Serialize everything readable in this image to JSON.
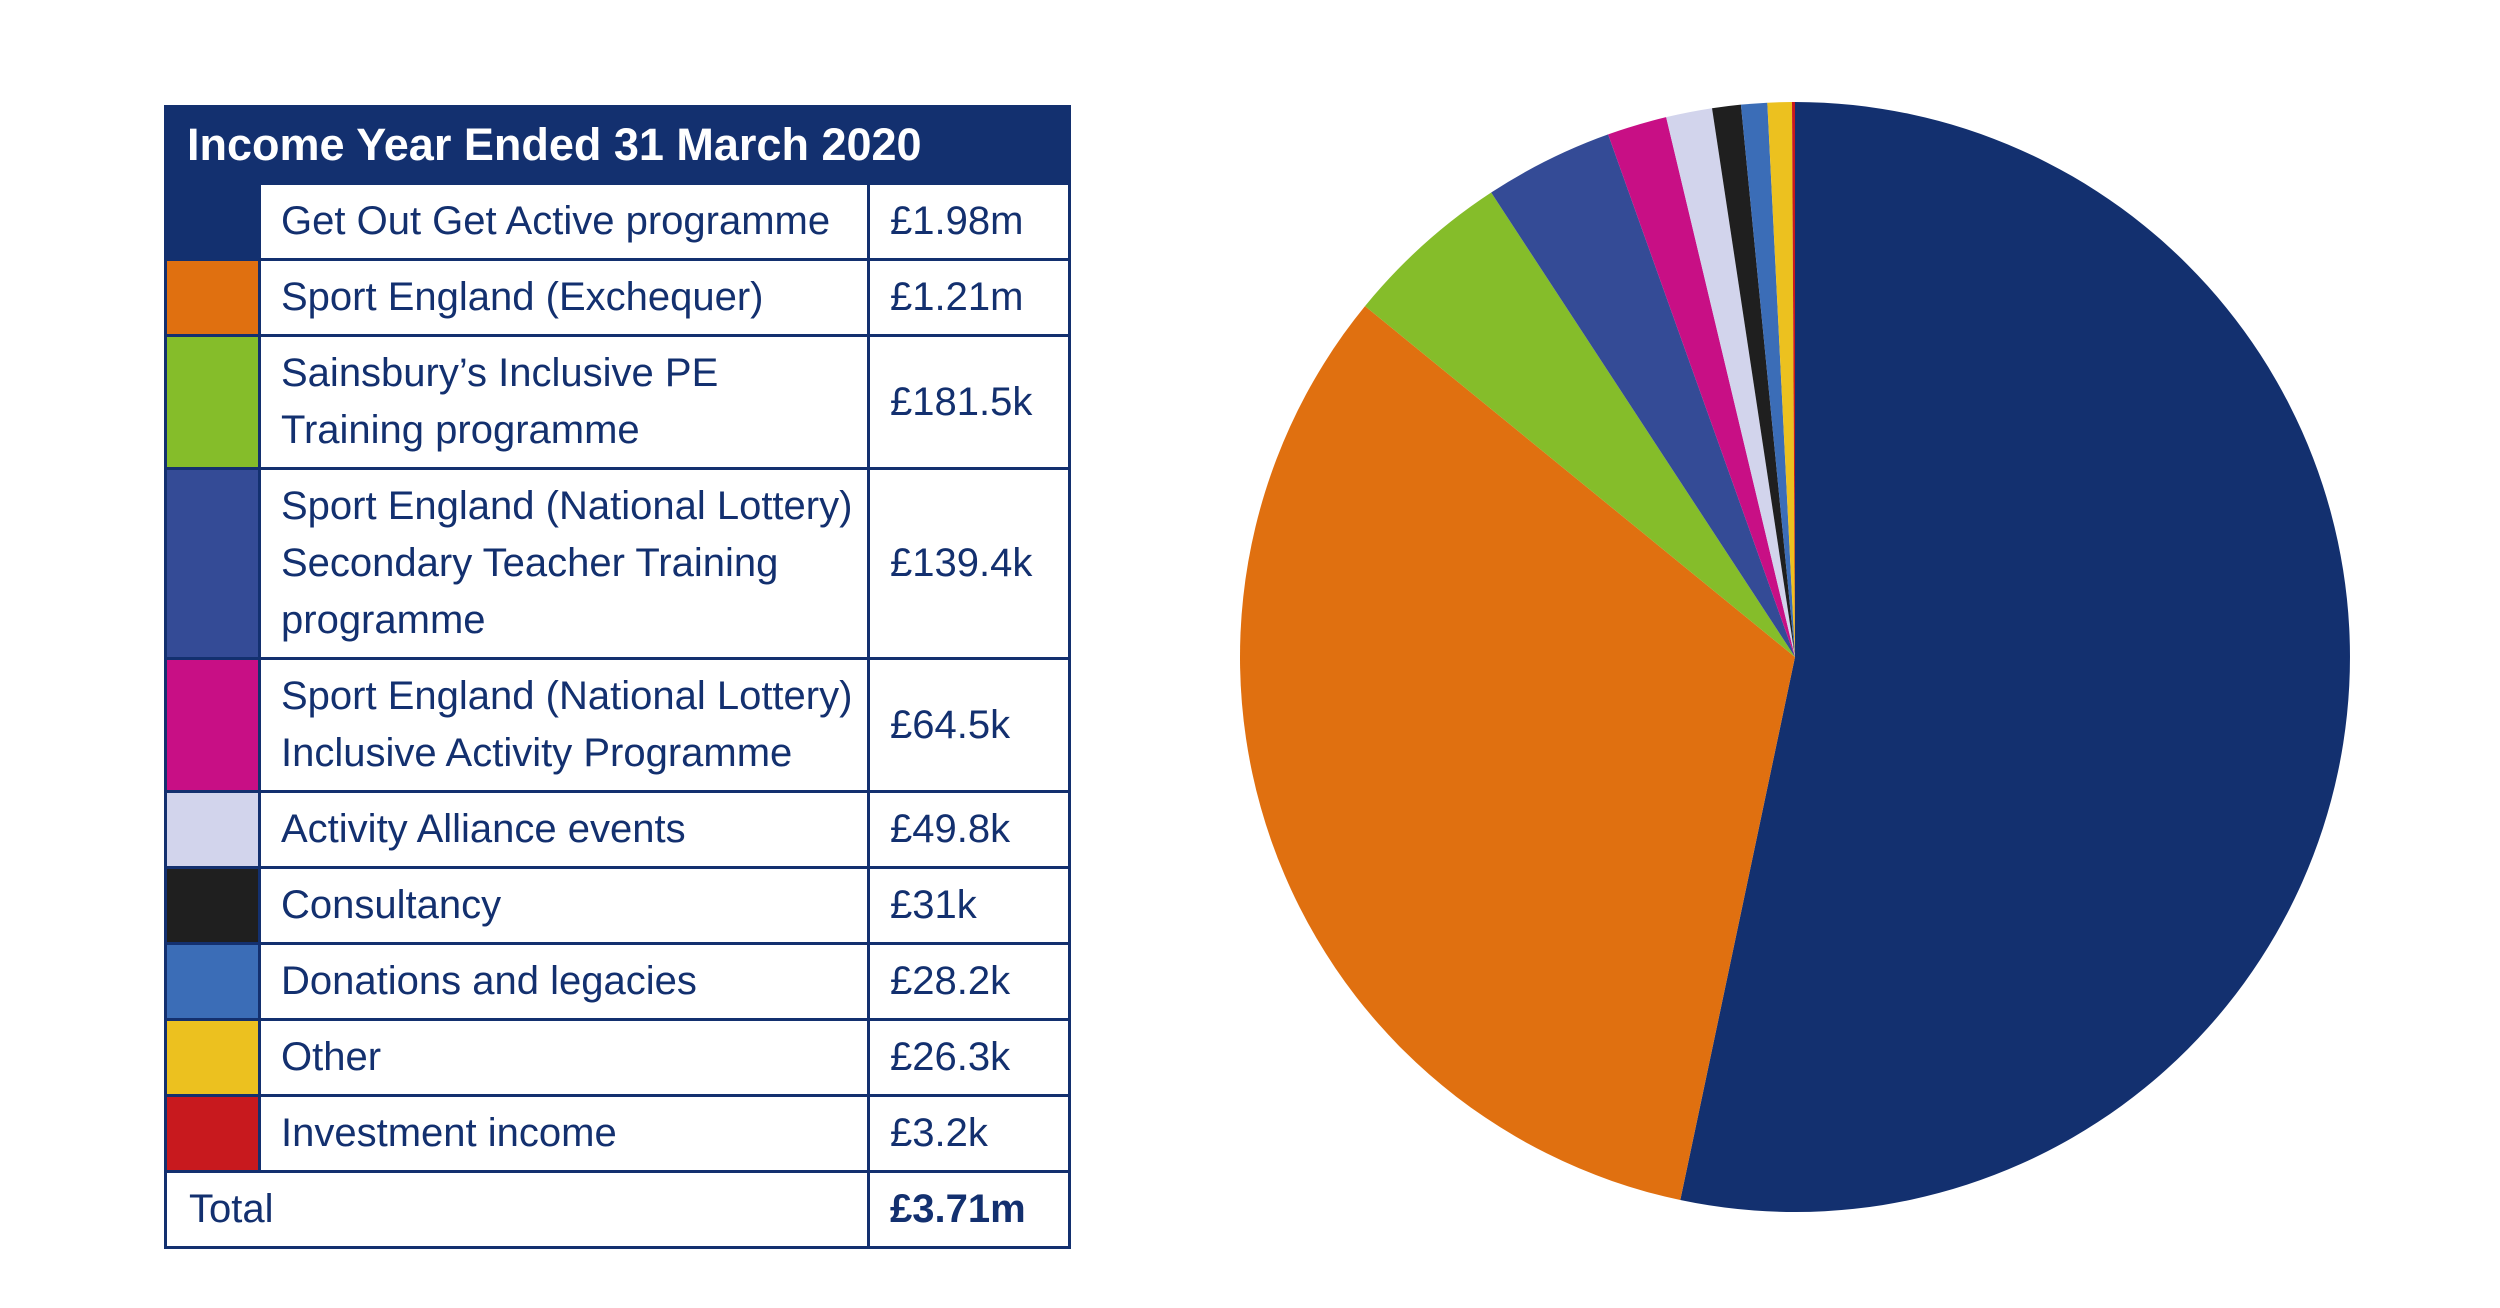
{
  "chart_data": {
    "type": "pie",
    "title": "Income Year Ended 31 March 2020",
    "slices": [
      {
        "label": "Get Out Get Active programme",
        "display": "£1.98m",
        "value": 1980,
        "color": "#13306f"
      },
      {
        "label": "Sport England (Exchequer)",
        "display": "£1.21m",
        "value": 1210,
        "color": "#e07010"
      },
      {
        "label": "Sainsbury’s Inclusive PE Training programme",
        "display": "£181.5k",
        "value": 181.5,
        "color": "#85bd2a"
      },
      {
        "label": "Sport England (National Lottery) Secondary Teacher Training programme",
        "display": "£139.4k",
        "value": 139.4,
        "color": "#344b96"
      },
      {
        "label": "Sport England (National Lottery) Inclusive Activity Programme",
        "display": "£64.5k",
        "value": 64.5,
        "color": "#c80f85"
      },
      {
        "label": "Activity Alliance events",
        "display": "£49.8k",
        "value": 49.8,
        "color": "#d2d4ec"
      },
      {
        "label": "Consultancy",
        "display": "£31k",
        "value": 31,
        "color": "#1f1f1f"
      },
      {
        "label": "Donations and legacies",
        "display": "£28.2k",
        "value": 28.2,
        "color": "#3b6db7"
      },
      {
        "label": "Other",
        "display": "£26.3k",
        "value": 26.3,
        "color": "#ecc11f"
      },
      {
        "label": "Investment income",
        "display": "£3.2k",
        "value": 3.2,
        "color": "#c8191e"
      }
    ],
    "total_label": "Total",
    "total_display": "£3.71m",
    "start_angle_deg": 0,
    "direction": "clockwise"
  }
}
